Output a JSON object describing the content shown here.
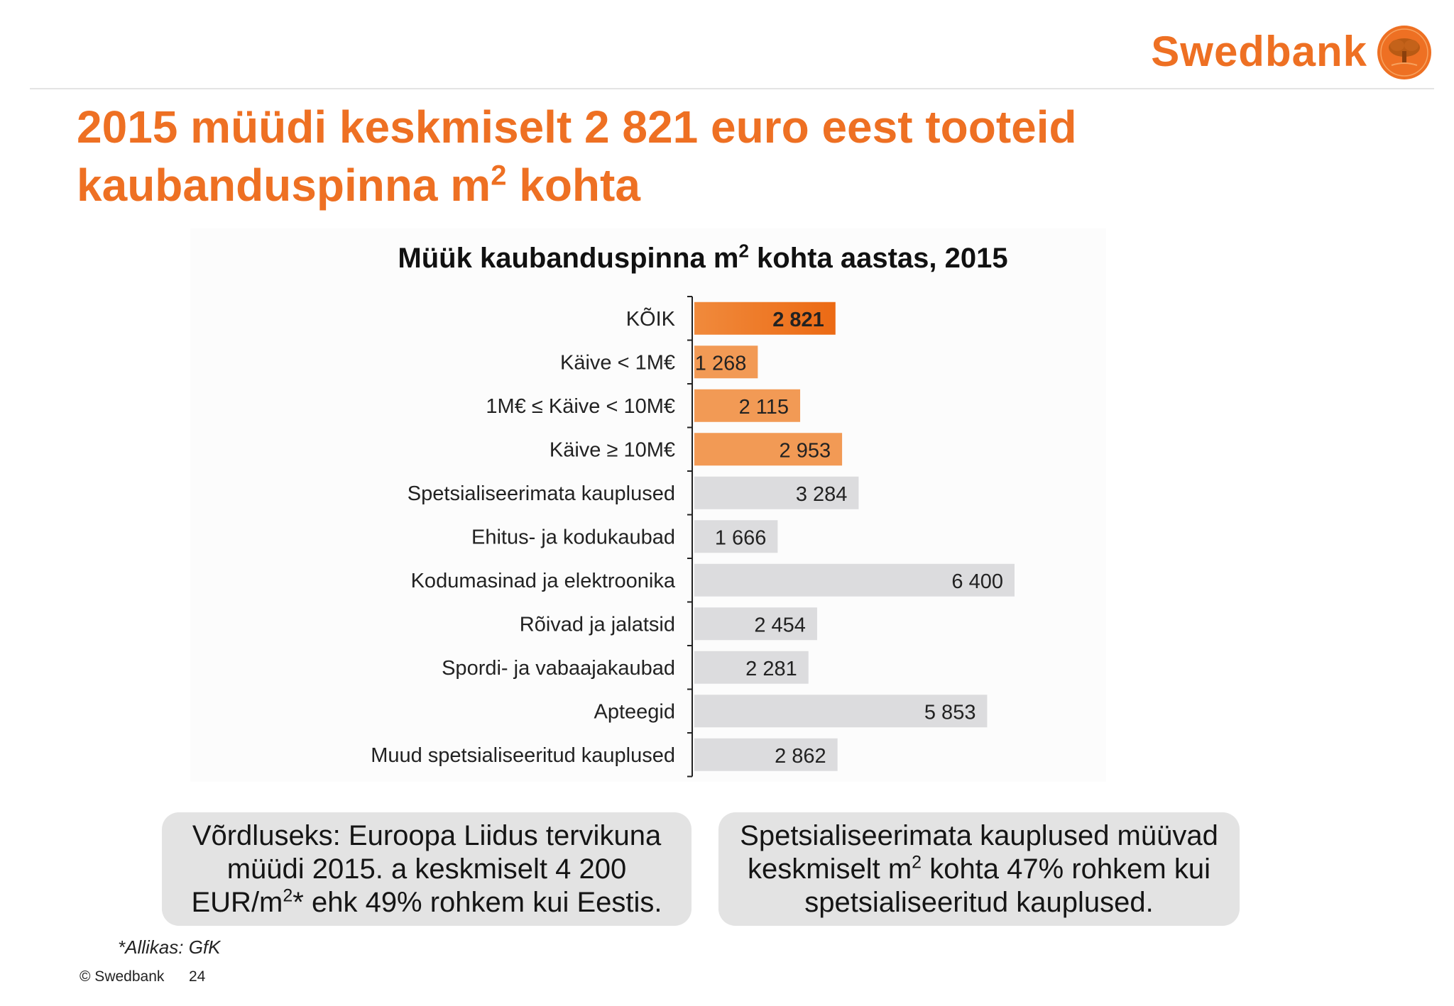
{
  "brand": {
    "name": "Swedbank",
    "color": "#ee7023"
  },
  "title": {
    "line1": "2015 müüdi keskmiselt 2 821 euro eest tooteid",
    "line2_pre": "kaubanduspinna m",
    "line2_sup": "2",
    "line2_post": " kohta"
  },
  "chart_data": {
    "type": "bar",
    "orientation": "horizontal",
    "title_pre": "Müük kaubanduspinna m",
    "title_sup": "2",
    "title_post": " kohta aastas, 2015",
    "categories": [
      "KÕIK",
      "Käive < 1M€",
      "1M€ ≤ Käive < 10M€",
      "Käive ≥ 10M€",
      "Spetsialiseerimata kauplused",
      "Ehitus- ja kodukaubad",
      "Kodumasinad ja elektroonika",
      "Rõivad ja jalatsid",
      "Spordi- ja vabaajakaubad",
      "Apteegid",
      "Muud spetsialiseeritud kauplused"
    ],
    "values": [
      2821,
      1268,
      2115,
      2953,
      3284,
      1666,
      6400,
      2454,
      2281,
      5853,
      2862
    ],
    "value_labels": [
      "2 821",
      "1 268",
      "2 115",
      "2 953",
      "3 284",
      "1 666",
      "6 400",
      "2 454",
      "2 281",
      "5 853",
      "2 862"
    ],
    "bar_colors": [
      "#ee7023",
      "#f29a55",
      "#f29a55",
      "#f29a55",
      "#dcdcde",
      "#dcdcde",
      "#dcdcde",
      "#dcdcde",
      "#dcdcde",
      "#dcdcde",
      "#dcdcde"
    ],
    "highlight_index": 0,
    "xlim": [
      0,
      6400
    ],
    "grid": false,
    "legend": "none"
  },
  "notes": {
    "left": {
      "line1": "Võrdluseks: Euroopa Liidus tervikuna",
      "line2": "müüdi 2015. a keskmiselt 4 200",
      "line3_pre": "EUR/m",
      "line3_sup": "2",
      "line3_post": "* ehk 49% rohkem kui Eestis."
    },
    "right": {
      "line1": "Spetsialiseerimata kauplused müüvad",
      "line2_pre": "keskmiselt m",
      "line2_sup": "2",
      "line2_post": " kohta 47% rohkem kui",
      "line3": "spetsialiseeritud kauplused."
    }
  },
  "source": "*Allikas: GfK",
  "footer": {
    "copyright": "© Swedbank",
    "page": "24"
  }
}
